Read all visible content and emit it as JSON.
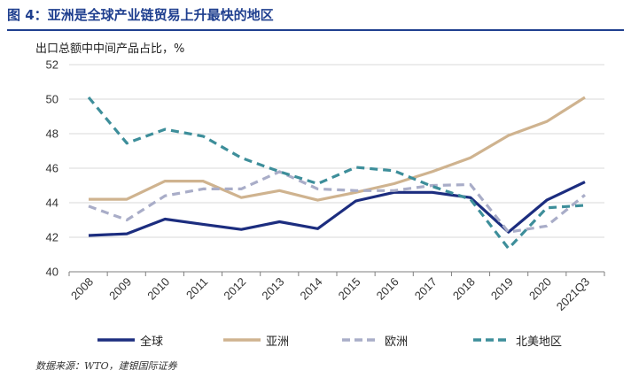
{
  "figure": {
    "title": "图 4：亚洲是全球产业链贸易上升最快的地区",
    "unit_label": "出口总额中中间产品占比，%",
    "source": "数据来源：WTO，建银国际证券"
  },
  "chart_data": {
    "type": "line",
    "title": "",
    "ylabel": "",
    "xlabel": "",
    "ylim": [
      40,
      52
    ],
    "yticks": [
      40,
      42,
      44,
      46,
      48,
      50,
      52
    ],
    "categories": [
      "2008",
      "2009",
      "2010",
      "2011",
      "2012",
      "2013",
      "2014",
      "2015",
      "2016",
      "2017",
      "2018",
      "2019",
      "2020",
      "2021Q3"
    ],
    "grid": true,
    "legend_position": "bottom",
    "series": [
      {
        "name": "全球",
        "color": "#1c2d7f",
        "dash": "solid",
        "values": [
          42.1,
          42.2,
          43.05,
          42.75,
          42.45,
          42.9,
          42.5,
          44.1,
          44.6,
          44.6,
          44.3,
          42.3,
          44.15,
          45.2
        ]
      },
      {
        "name": "亚洲",
        "color": "#cfb38f",
        "dash": "solid",
        "values": [
          44.2,
          44.2,
          45.25,
          45.25,
          44.3,
          44.7,
          44.15,
          44.6,
          45.1,
          45.8,
          46.6,
          47.9,
          48.7,
          50.1
        ]
      },
      {
        "name": "欧洲",
        "color": "#a9adc8",
        "dash": "dashed",
        "values": [
          43.8,
          43.0,
          44.4,
          44.8,
          44.8,
          45.8,
          44.8,
          44.7,
          44.7,
          45.0,
          45.05,
          42.3,
          42.65,
          44.45
        ]
      },
      {
        "name": "北美地区",
        "color": "#3d8e9a",
        "dash": "dashed",
        "values": [
          50.1,
          47.45,
          48.25,
          47.85,
          46.6,
          45.8,
          45.1,
          46.05,
          45.85,
          44.95,
          44.2,
          41.35,
          43.7,
          43.85
        ]
      }
    ]
  }
}
